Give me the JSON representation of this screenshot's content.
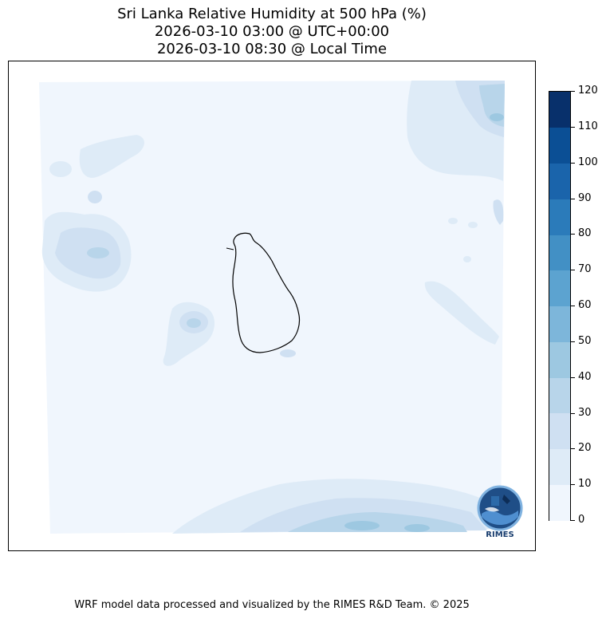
{
  "title": {
    "line1": "Sri Lanka Relative Humidity at 500 hPa (%)",
    "line2": "2026-03-10 03:00 @ UTC+00:00",
    "line3": "2026-03-10 08:30 @ Local Time"
  },
  "colorbar": {
    "levels": [
      "0",
      "10",
      "20",
      "30",
      "40",
      "50",
      "60",
      "70",
      "80",
      "90",
      "100",
      "110",
      "120"
    ],
    "colors": [
      "#f0f6fd",
      "#deebf7",
      "#cfe0f2",
      "#b8d5ea",
      "#9dc8e1",
      "#7db6da",
      "#5ca3d0",
      "#4290c5",
      "#2b7bba",
      "#1a64ab",
      "#0b4f95",
      "#08306b"
    ]
  },
  "footer": "WRF model data processed and visualized by the RIMES R&D Team. © 2025",
  "logo": {
    "text": "RIMES",
    "icon": "rimes-globe-logo-icon"
  },
  "map": {
    "region": "Sri Lanka",
    "outline_color": "#000000"
  }
}
